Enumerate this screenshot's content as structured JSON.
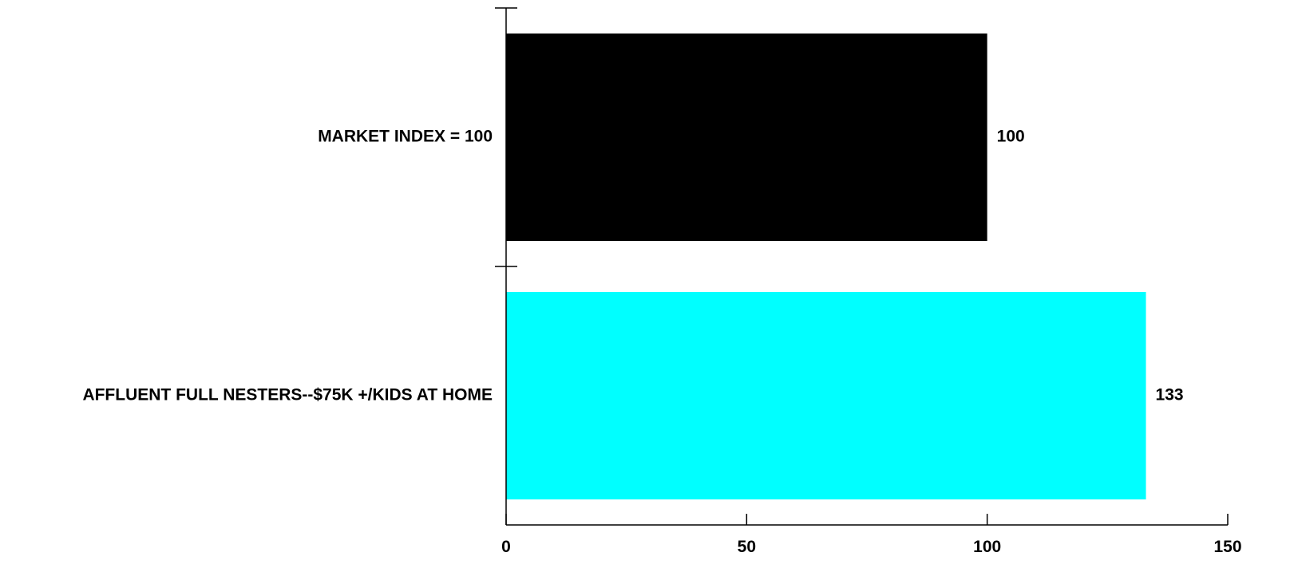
{
  "chart_data": {
    "type": "bar",
    "orientation": "horizontal",
    "title": "",
    "xlabel": "",
    "ylabel": "",
    "categories": [
      "MARKET INDEX = 100",
      "AFFLUENT FULL NESTERS--$75K +/KIDS AT HOME"
    ],
    "values": [
      100,
      133
    ],
    "value_labels": [
      "100",
      "133"
    ],
    "colors": [
      "#000000",
      "#00ffff"
    ],
    "xlim": [
      0,
      150
    ],
    "xticks": [
      0,
      50,
      100,
      150
    ],
    "xtick_labels": [
      "0",
      "50",
      "100",
      "150"
    ],
    "grid": false,
    "legend": "none"
  }
}
